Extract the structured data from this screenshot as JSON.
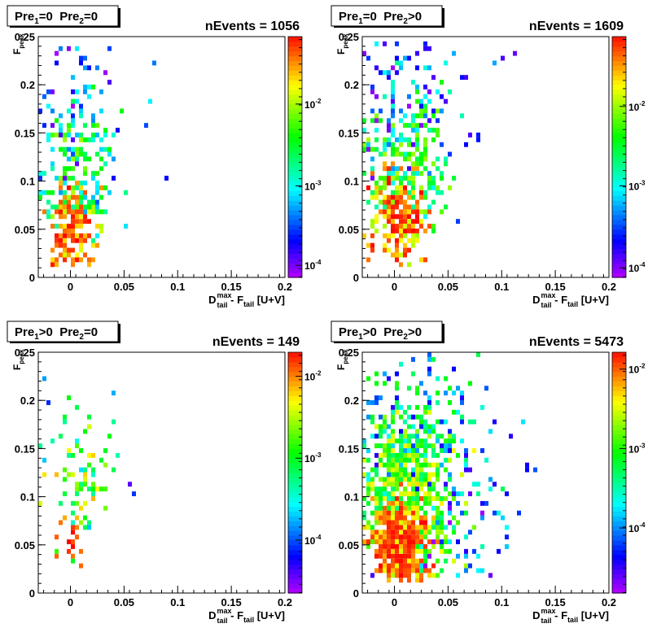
{
  "chart_data": [
    {
      "type": "heatmap",
      "box": {
        "pre1_main": "Pre",
        "pre1_sub": "1",
        "pre1_rest": "=0",
        "pre2_main": "Pre",
        "pre2_sub": "2",
        "pre2_rest": "=0"
      },
      "title": "nEvents = 1056",
      "xlabel": {
        "main": "D",
        "sup": "max",
        "sub": "tail",
        "mid": " - F",
        "sub2": "tail",
        "rest": " [U+V]"
      },
      "ylabel": {
        "main": "F",
        "sub": "peak"
      },
      "xlim": [
        -0.03,
        0.2
      ],
      "ylim": [
        0,
        0.25
      ],
      "x_ticks": [
        "0",
        "0.05",
        "0.1",
        "0.15",
        "0.2"
      ],
      "x_tick_values": [
        0,
        0.05,
        0.1,
        0.15,
        0.2
      ],
      "y_ticks": [
        "0",
        "0.05",
        "0.1",
        "0.15",
        "0.2",
        "0.25"
      ],
      "y_tick_values": [
        0,
        0.05,
        0.1,
        0.15,
        0.2,
        0.25
      ],
      "z_scale": "log",
      "z_ticks": [
        {
          "label": "10",
          "exp": "-2",
          "pos": 0.72
        },
        {
          "label": "10",
          "exp": "-3",
          "pos": 0.38
        },
        {
          "label": "10",
          "exp": "-4",
          "pos": 0.05
        }
      ],
      "clusters": [
        {
          "cx": 0.003,
          "cy": 0.05,
          "sx": 0.011,
          "sy": 0.022,
          "n": 170,
          "z": [
            0.7,
            1.0
          ]
        },
        {
          "cx": 0.008,
          "cy": 0.1,
          "sx": 0.017,
          "sy": 0.04,
          "n": 150,
          "z": [
            0.3,
            0.7
          ]
        },
        {
          "cx": 0.008,
          "cy": 0.17,
          "sx": 0.022,
          "sy": 0.045,
          "n": 90,
          "z": [
            0.0,
            0.4
          ]
        }
      ],
      "outliers": [
        [
          0.09,
          0.102
        ],
        [
          0.08,
          0.222
        ],
        [
          0.075,
          0.182
        ],
        [
          0.07,
          0.16
        ],
        [
          0.05,
          0.054
        ]
      ],
      "seed": 11
    },
    {
      "type": "heatmap",
      "box": {
        "pre1_main": "Pre",
        "pre1_sub": "1",
        "pre1_rest": "=0",
        "pre2_main": "Pre",
        "pre2_sub": "2",
        "pre2_rest": ">0"
      },
      "title": "nEvents = 1609",
      "xlabel": {
        "main": "D",
        "sup": "max",
        "sub": "tail",
        "mid": " - F",
        "sub2": "tail",
        "rest": " [U+V]"
      },
      "ylabel": {
        "main": "F",
        "sub": "peak"
      },
      "xlim": [
        -0.03,
        0.2
      ],
      "ylim": [
        0,
        0.25
      ],
      "x_ticks": [
        "0",
        "0.05",
        "0.1",
        "0.15",
        "0.2"
      ],
      "x_tick_values": [
        0,
        0.05,
        0.1,
        0.15,
        0.2
      ],
      "y_ticks": [
        "0",
        "0.05",
        "0.1",
        "0.15",
        "0.2",
        "0.25"
      ],
      "y_tick_values": [
        0,
        0.05,
        0.1,
        0.15,
        0.2,
        0.25
      ],
      "z_scale": "log",
      "z_ticks": [
        {
          "label": "10",
          "exp": "-2",
          "pos": 0.71
        },
        {
          "label": "10",
          "exp": "-3",
          "pos": 0.38
        },
        {
          "label": "10",
          "exp": "-4",
          "pos": 0.04
        }
      ],
      "clusters": [
        {
          "cx": 0.005,
          "cy": 0.055,
          "sx": 0.012,
          "sy": 0.025,
          "n": 220,
          "z": [
            0.7,
            1.0
          ]
        },
        {
          "cx": 0.01,
          "cy": 0.11,
          "sx": 0.02,
          "sy": 0.04,
          "n": 220,
          "z": [
            0.35,
            0.72
          ]
        },
        {
          "cx": 0.012,
          "cy": 0.18,
          "sx": 0.026,
          "sy": 0.045,
          "n": 140,
          "z": [
            0.0,
            0.45
          ]
        }
      ],
      "outliers": [
        [
          0.113,
          0.232
        ],
        [
          0.1,
          0.228
        ],
        [
          0.095,
          0.225
        ],
        [
          0.08,
          0.15
        ],
        [
          0.06,
          0.06
        ],
        [
          0.065,
          0.14
        ]
      ],
      "seed": 23
    },
    {
      "type": "heatmap",
      "box": {
        "pre1_main": "Pre",
        "pre1_sub": "1",
        "pre1_rest": ">0",
        "pre2_main": "Pre",
        "pre2_sub": "2",
        "pre2_rest": "=0"
      },
      "title": "nEvents = 149",
      "xlabel": {
        "main": "D",
        "sup": "max",
        "sub": "tail",
        "mid": " - F",
        "sub2": "tail",
        "rest": " [U+V]"
      },
      "ylabel": {
        "main": "F",
        "sub": "peak"
      },
      "xlim": [
        -0.03,
        0.2
      ],
      "ylim": [
        0,
        0.25
      ],
      "x_ticks": [
        "0",
        "0.05",
        "0.1",
        "0.15",
        "0.2"
      ],
      "x_tick_values": [
        0,
        0.05,
        0.1,
        0.15,
        0.2
      ],
      "y_ticks": [
        "0",
        "0.05",
        "0.1",
        "0.15",
        "0.2",
        "0.25"
      ],
      "y_tick_values": [
        0,
        0.05,
        0.1,
        0.15,
        0.2,
        0.25
      ],
      "z_scale": "log",
      "z_ticks": [
        {
          "label": "10",
          "exp": "-2",
          "pos": 0.9
        },
        {
          "label": "10",
          "exp": "-3",
          "pos": 0.56
        },
        {
          "label": "10",
          "exp": "-4",
          "pos": 0.22
        }
      ],
      "clusters": [
        {
          "cx": 0.0,
          "cy": 0.05,
          "sx": 0.006,
          "sy": 0.015,
          "n": 18,
          "z": [
            0.85,
            1.0
          ]
        },
        {
          "cx": 0.01,
          "cy": 0.11,
          "sx": 0.015,
          "sy": 0.035,
          "n": 55,
          "z": [
            0.4,
            0.85
          ]
        },
        {
          "cx": 0.02,
          "cy": 0.15,
          "sx": 0.02,
          "sy": 0.04,
          "n": 20,
          "z": [
            0.3,
            0.6
          ]
        }
      ],
      "outliers": [
        [
          -0.025,
          0.222
        ],
        [
          -0.02,
          0.2
        ],
        [
          0.04,
          0.21
        ],
        [
          0.06,
          0.103
        ],
        [
          0.055,
          0.112
        ]
      ],
      "seed": 37
    },
    {
      "type": "heatmap",
      "box": {
        "pre1_main": "Pre",
        "pre1_sub": "1",
        "pre1_rest": ">0",
        "pre2_main": "Pre",
        "pre2_sub": "2",
        "pre2_rest": ">0"
      },
      "title": "nEvents = 5473",
      "xlabel": {
        "main": "D",
        "sup": "max",
        "sub": "tail",
        "mid": " - F",
        "sub2": "tail",
        "rest": " [U+V]"
      },
      "ylabel": {
        "main": "F",
        "sub": "peak"
      },
      "xlim": [
        -0.03,
        0.2
      ],
      "ylim": [
        0,
        0.25
      ],
      "x_ticks": [
        "0",
        "0.05",
        "0.1",
        "0.15",
        "0.2"
      ],
      "x_tick_values": [
        0,
        0.05,
        0.1,
        0.15,
        0.2
      ],
      "y_ticks": [
        "0",
        "0.05",
        "0.1",
        "0.15",
        "0.2",
        "0.25"
      ],
      "y_tick_values": [
        0,
        0.05,
        0.1,
        0.15,
        0.2,
        0.25
      ],
      "z_scale": "log",
      "z_ticks": [
        {
          "label": "10",
          "exp": "-2",
          "pos": 0.93
        },
        {
          "label": "10",
          "exp": "-3",
          "pos": 0.6
        },
        {
          "label": "10",
          "exp": "-4",
          "pos": 0.27
        }
      ],
      "clusters": [
        {
          "cx": 0.006,
          "cy": 0.05,
          "sx": 0.013,
          "sy": 0.025,
          "n": 420,
          "z": [
            0.75,
            1.0
          ]
        },
        {
          "cx": 0.012,
          "cy": 0.1,
          "sx": 0.022,
          "sy": 0.04,
          "n": 450,
          "z": [
            0.45,
            0.8
          ]
        },
        {
          "cx": 0.02,
          "cy": 0.16,
          "sx": 0.03,
          "sy": 0.045,
          "n": 260,
          "z": [
            0.1,
            0.6
          ]
        },
        {
          "cx": 0.05,
          "cy": 0.09,
          "sx": 0.03,
          "sy": 0.04,
          "n": 110,
          "z": [
            0.0,
            0.45
          ]
        }
      ],
      "outliers": [
        [
          0.12,
          0.178
        ],
        [
          0.11,
          0.165
        ],
        [
          0.105,
          0.05
        ],
        [
          0.1,
          0.08
        ],
        [
          0.115,
          0.085
        ]
      ],
      "seed": 53
    }
  ]
}
